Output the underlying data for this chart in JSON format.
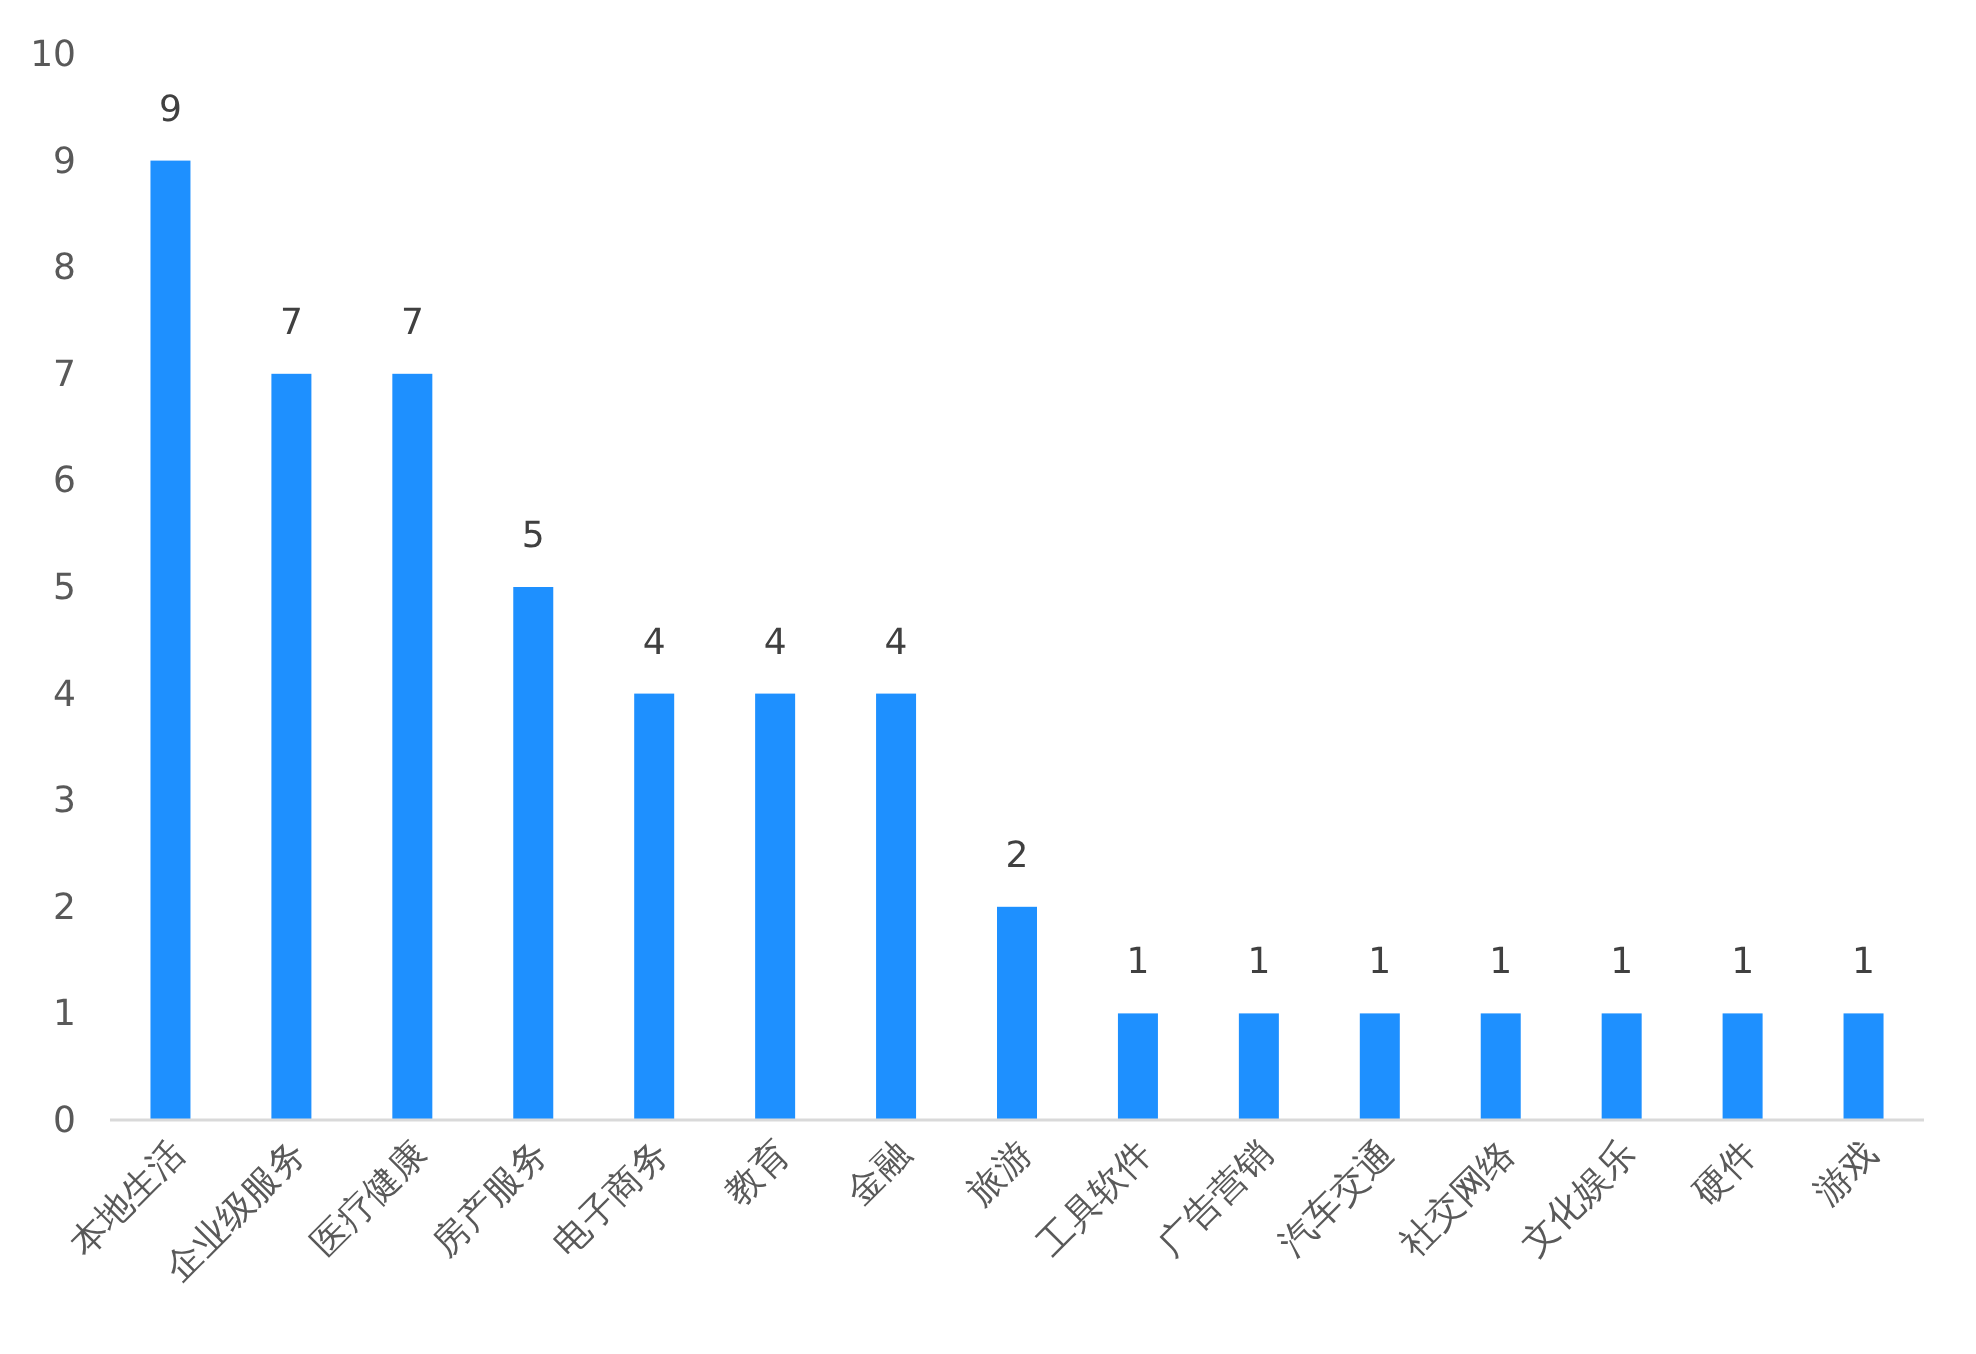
{
  "chart_data": {
    "type": "bar",
    "categories": [
      "本地生活",
      "企业级服务",
      "医疗健康",
      "房产服务",
      "电子商务",
      "教育",
      "金融",
      "旅游",
      "工具软件",
      "广告营销",
      "汽车交通",
      "社交网络",
      "文化娱乐",
      "硬件",
      "游戏"
    ],
    "values": [
      9,
      7,
      7,
      5,
      4,
      4,
      4,
      2,
      1,
      1,
      1,
      1,
      1,
      1,
      1
    ],
    "color": "#1e90ff",
    "ylim": [
      0,
      10
    ],
    "yticks": [
      0,
      1,
      2,
      3,
      4,
      5,
      6,
      7,
      8,
      9,
      10
    ],
    "data_labels": true
  }
}
